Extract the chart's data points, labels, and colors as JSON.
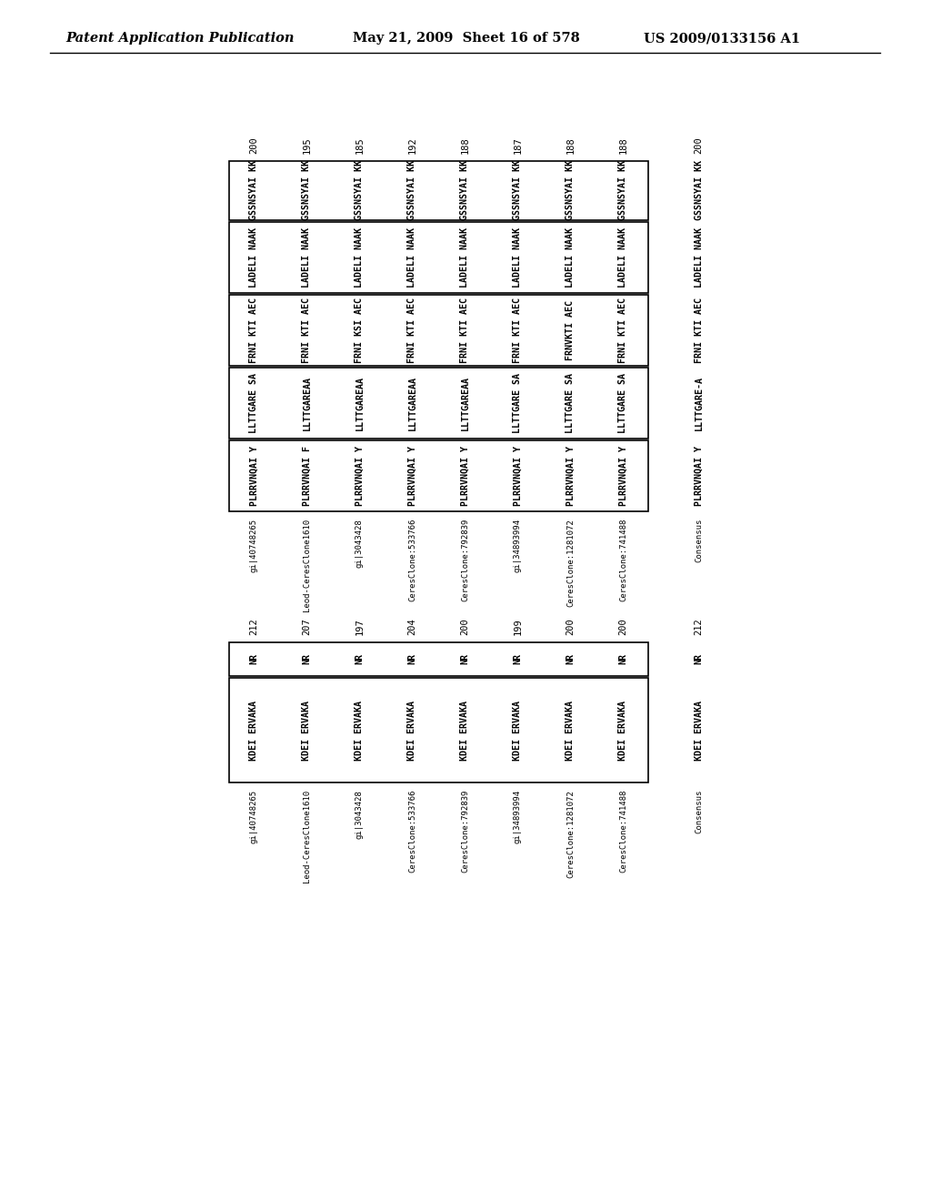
{
  "header_left": "Patent Application Publication",
  "header_mid": "May 21, 2009  Sheet 16 of 578",
  "header_right": "US 2009/0133156 A1",
  "block1_names": [
    "gi|40748265",
    "Leod-CeresClone1610",
    "gi|3043428",
    "CeresClone:533766",
    "CeresClone:792839",
    "gi|34893994",
    "CeresClone:1281072",
    "CeresClone:741488"
  ],
  "block1_seqs": [
    [
      "PLRRVNQAI Y",
      "LLTTGARE SA",
      "FRNI KTI AEC",
      "LADELI NAAK",
      "GSSNSYAI KK"
    ],
    [
      "PLRRVNQAI F",
      "LLTTGAREAA",
      "FRNI KTI AEC",
      "LADELI NAAK",
      "GSSNSYAI KK"
    ],
    [
      "PLRRVNQAI Y",
      "LLTTGAREAA",
      "FRNI KSI AEC",
      "LADELI NAAK",
      "GSSNSYAI KK"
    ],
    [
      "PLRRVNQAI Y",
      "LLTTGAREAA",
      "FRNI KTI AEC",
      "LADELI NAAK",
      "GSSNSYAI KK"
    ],
    [
      "PLRRVNQAI Y",
      "LLTTGAREAA",
      "FRNI KTI AEC",
      "LADELI NAAK",
      "GSSNSYAI KK"
    ],
    [
      "PLRRVNQAI Y",
      "LLTTGARE SA",
      "FRNI KTI AEC",
      "LADELI NAAK",
      "GSSNSYAI KK"
    ],
    [
      "PLRRVNQAI Y",
      "LLTTGARE SA",
      "FRNVKTI AEC",
      "LADELI NAAK",
      "GSSNSYAI KK"
    ],
    [
      "PLRRVNQAI Y",
      "LLTTGARE SA",
      "FRNI KTI AEC",
      "LADELI NAAK",
      "GSSNSYAI KK"
    ]
  ],
  "block1_nums": [
    "200",
    "195",
    "185",
    "192",
    "188",
    "187",
    "188",
    "188"
  ],
  "block1_cons_seq": [
    "PLRRVNQAI Y",
    "LLTTGARE-A",
    "FRNI KTI AEC",
    "LADELI NAAK",
    "GSSNSYAI KK"
  ],
  "block1_cons_num": "200",
  "block1_boxed_segs": [
    0,
    1,
    2,
    3,
    4
  ],
  "block2_names": [
    "gi|40748265",
    "Leod-CeresClone1610",
    "gi|3043428",
    "CeresClone:533766",
    "CeresClone:792839",
    "gi|34893994",
    "CeresClone:1281072",
    "CeresClone:741488"
  ],
  "block2_seqs": [
    [
      "KDEI ERVAKA",
      "NR"
    ],
    [
      "KDEI ERVAKA",
      "NR"
    ],
    [
      "KDEI ERVAKA",
      "NR"
    ],
    [
      "KDEI ERVAKA",
      "NR"
    ],
    [
      "KDEI ERVAKA",
      "NR"
    ],
    [
      "KDEI ERVAKA",
      "NR"
    ],
    [
      "KDEI ERVAKA",
      "NR"
    ],
    [
      "KDEI ERVAKA",
      "NR"
    ]
  ],
  "block2_nums": [
    "212",
    "207",
    "197",
    "204",
    "200",
    "199",
    "200",
    "200"
  ],
  "block2_cons_seq": [
    "KDEI ERVAKA",
    "NR"
  ],
  "block2_cons_num": "212",
  "block2_boxed_segs": [
    0,
    1
  ]
}
